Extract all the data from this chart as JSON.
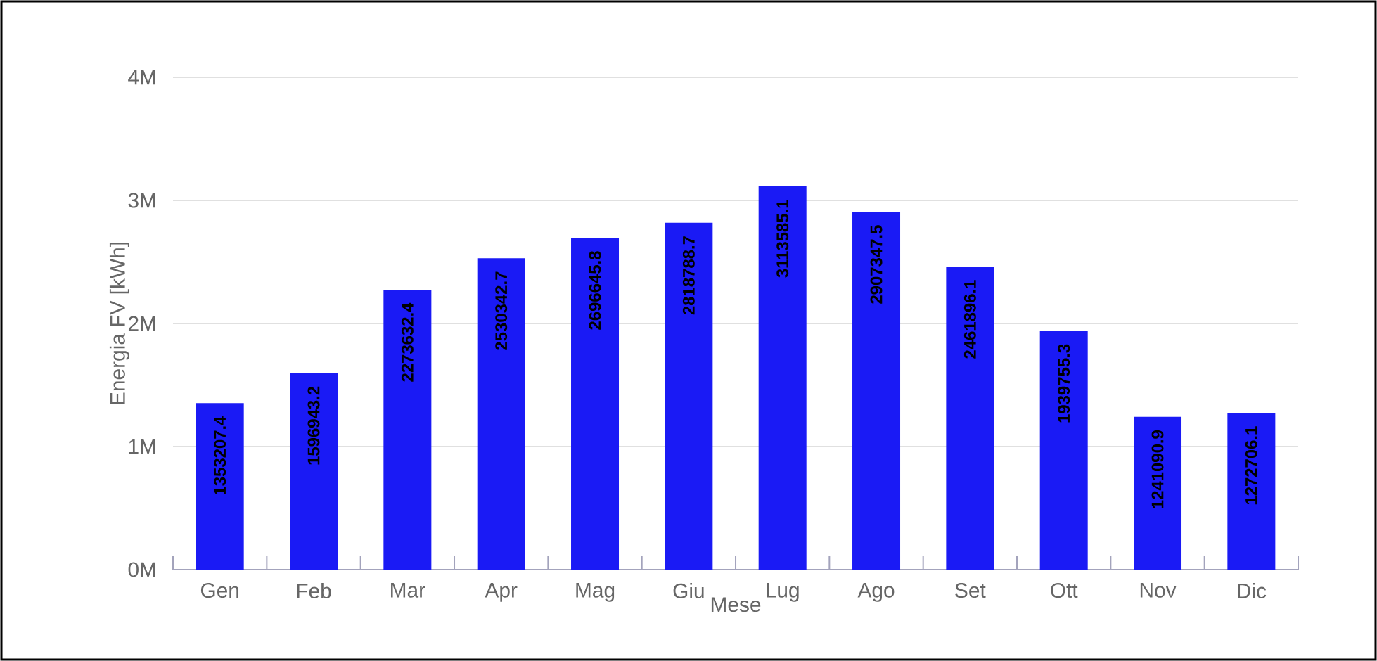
{
  "chart_data": {
    "type": "bar",
    "xlabel": "Mese",
    "ylabel": "Energia FV [kWh]",
    "categories": [
      "Gen",
      "Feb",
      "Mar",
      "Apr",
      "Mag",
      "Giu",
      "Lug",
      "Ago",
      "Set",
      "Ott",
      "Nov",
      "Dic"
    ],
    "values": [
      1353207.4,
      1596943.2,
      2273632.4,
      2530342.7,
      2696645.8,
      2818788.7,
      3113585.1,
      2907347.5,
      2461896.1,
      1939755.3,
      1241090.9,
      1272706.1
    ],
    "color": "#1a1af5",
    "ylim": [
      0,
      4000000
    ],
    "yticks": [
      {
        "value": 0,
        "label": "0M"
      },
      {
        "value": 1000000,
        "label": "1M"
      },
      {
        "value": 2000000,
        "label": "2M"
      },
      {
        "value": 3000000,
        "label": "3M"
      },
      {
        "value": 4000000,
        "label": "4M"
      }
    ],
    "grid": "y",
    "data_labels": true
  }
}
